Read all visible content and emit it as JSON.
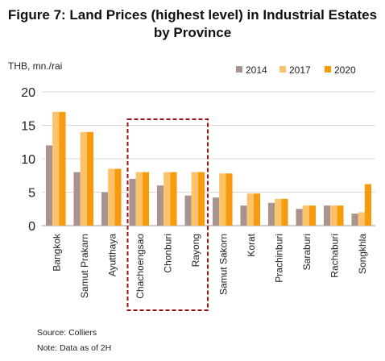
{
  "figure": {
    "title_line1": "Figure 7: Land Prices (highest level) in Industrial Estates",
    "title_line2": "by Province",
    "source": "Source: Colliers",
    "note": "Note: Data as of 2H"
  },
  "colors": {
    "2014": "#a8938f",
    "2017": "#fcc36a",
    "2020": "#f59b0d",
    "highlight_box": "#a01010"
  },
  "chart_data": {
    "type": "bar",
    "title": "Figure 7: Land Prices (highest level) in Industrial Estates by Province",
    "ylabel": "THB, mn./rai",
    "xlabel": "",
    "ylim": [
      0,
      20
    ],
    "yticks": [
      0,
      5,
      10,
      15,
      20
    ],
    "grid": true,
    "legend_position": "top-right",
    "categories": [
      "Bangkok",
      "Samut Prakarn",
      "Ayutthaya",
      "Chachoengsao",
      "Chonburi",
      "Rayong",
      "Samut Sakorn",
      "Korat",
      "Prachinburi",
      "Saraburi",
      "Rachaburi",
      "Songkhla"
    ],
    "series": [
      {
        "name": "2014",
        "values": [
          12,
          8,
          5,
          7,
          6,
          4.5,
          4.2,
          3,
          3.4,
          2.5,
          3,
          1.8
        ]
      },
      {
        "name": "2017",
        "values": [
          17,
          14,
          8.5,
          8,
          8,
          8,
          7.8,
          4.8,
          4,
          3,
          3,
          2
        ]
      },
      {
        "name": "2020",
        "values": [
          17,
          14,
          8.5,
          8,
          8,
          8,
          7.8,
          4.8,
          4,
          3,
          3,
          6.2
        ]
      }
    ],
    "highlighted_categories": [
      "Chachoengsao",
      "Chonburi",
      "Rayong"
    ]
  }
}
